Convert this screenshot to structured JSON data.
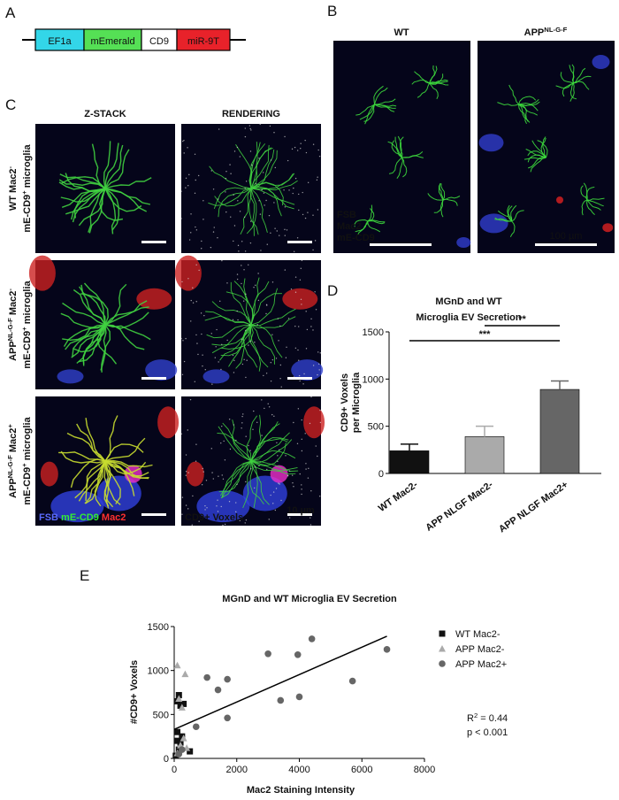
{
  "panels": [
    "A",
    "B",
    "C",
    "D",
    "E"
  ],
  "panel_a": {
    "construct": [
      {
        "text": "EF1a",
        "color": "#33d6e8"
      },
      {
        "text": "mEmerald",
        "color": "#55e055"
      },
      {
        "text": "CD9",
        "color": "#ffffff"
      },
      {
        "text": "miR-9T",
        "color": "#e8222a"
      }
    ]
  },
  "panel_b": {
    "columns": [
      [
        {
          "text": "WT"
        }
      ],
      [
        {
          "text": "APP"
        },
        {
          "sup": "NL-G-F"
        }
      ]
    ],
    "legend": [
      {
        "text": "FSB",
        "color": "#4d5cff"
      },
      {
        "text": "Mac2",
        "color": "#ff2a2a"
      },
      {
        "text": "mE-CD9",
        "color": "#33ee33"
      }
    ],
    "scale": "100 µm"
  },
  "panel_c": {
    "columns": [
      "Z-STACK",
      "RENDERING"
    ],
    "rows": [
      {
        "line1": [
          {
            "text": "WT Mac2"
          },
          {
            "sup": "-"
          }
        ],
        "line2": [
          {
            "text": "mE-CD9"
          },
          {
            "sup": "+"
          },
          {
            "text": " microglia"
          }
        ]
      },
      {
        "line1": [
          {
            "text": "APP"
          },
          {
            "sup": "NL-G-F"
          },
          {
            "text": " Mac2"
          },
          {
            "sup": "-"
          }
        ],
        "line2": [
          {
            "text": "mE-CD9"
          },
          {
            "sup": "+"
          },
          {
            "text": " microglia"
          }
        ]
      },
      {
        "line1": [
          {
            "text": "APP"
          },
          {
            "sup": "NL-G-F"
          },
          {
            "text": " Mac2"
          },
          {
            "sup": "+"
          }
        ],
        "line2": [
          {
            "text": "mE-CD9"
          },
          {
            "sup": "+"
          },
          {
            "text": " microglia"
          }
        ]
      }
    ],
    "legend": [
      {
        "text": "FSB",
        "color": "#5a6bff"
      },
      {
        "text": " mE-CD9",
        "color": "#33ee33"
      },
      {
        "text": " Mac2",
        "color": "#ff3030"
      }
    ],
    "voxels_label": "CD9+ Voxels",
    "scale": "10 µm"
  },
  "chart_data": [
    {
      "type": "bar",
      "title": [
        "MGnD and WT",
        "Microglia EV Secretion"
      ],
      "y_label": [
        "CD9+ Voxels",
        "per Microglia"
      ],
      "categories": [
        "WT Mac2-",
        "APP NLGF Mac2-",
        "APP NLGF Mac2+"
      ],
      "values": [
        240,
        390,
        890
      ],
      "errors": [
        70,
        110,
        90
      ],
      "colors": [
        "#111111",
        "#aaaaaa",
        "#666666"
      ],
      "ylim": [
        0,
        1500
      ],
      "yticks": [
        0,
        500,
        1000,
        1500
      ],
      "significance": [
        "**",
        "***"
      ]
    },
    {
      "type": "scatter",
      "title": "MGnD and WT Microglia EV Secretion",
      "x_label": "Mac2 Staining Intensity",
      "y_label": "#CD9+ Voxels",
      "xlim": [
        0,
        8000
      ],
      "xticks": [
        0,
        2000,
        4000,
        6000,
        8000
      ],
      "ylim": [
        0,
        1500
      ],
      "yticks": [
        0,
        500,
        1000,
        1500
      ],
      "series": [
        {
          "name": "WT Mac2-",
          "color": "#111111",
          "marker": "square",
          "x": [
            150,
            100,
            300,
            200,
            100,
            250,
            500,
            150,
            50,
            200,
            100
          ],
          "values": [
            720,
            650,
            620,
            600,
            200,
            250,
            80,
            100,
            30,
            180,
            300
          ]
        },
        {
          "name": "APP Mac2-",
          "color": "#aaaaaa",
          "marker": "triangle",
          "x": [
            100,
            350,
            150,
            250,
            300,
            200,
            100,
            400
          ],
          "values": [
            1060,
            960,
            680,
            580,
            230,
            150,
            60,
            120
          ]
        },
        {
          "name": "APP Mac2+",
          "color": "#666666",
          "marker": "circle",
          "x": [
            6800,
            4400,
            3000,
            3950,
            5700,
            4000,
            3400,
            1700,
            1400,
            1050,
            1700,
            700,
            250,
            150
          ],
          "values": [
            1240,
            1360,
            1190,
            1180,
            880,
            700,
            660,
            900,
            780,
            920,
            460,
            360,
            100,
            50
          ]
        }
      ],
      "fit": {
        "x": [
          0,
          6800
        ],
        "values": [
          330,
          1390
        ]
      },
      "annotations": [
        [
          {
            "text": "R"
          },
          {
            "sup": "2"
          },
          {
            "text": " = 0.44"
          }
        ],
        [
          {
            "text": "p < 0.001"
          }
        ]
      ]
    }
  ]
}
